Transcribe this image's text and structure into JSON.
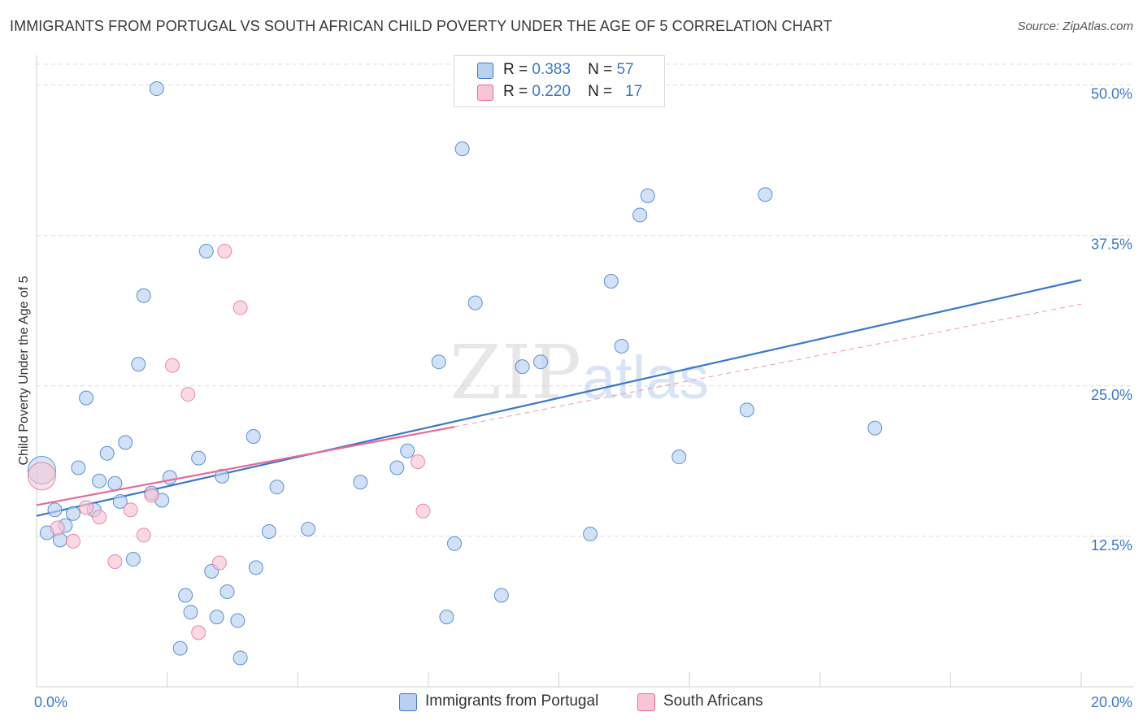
{
  "title": "IMMIGRANTS FROM PORTUGAL VS SOUTH AFRICAN CHILD POVERTY UNDER THE AGE OF 5 CORRELATION CHART",
  "source": "Source: ZipAtlas.com",
  "watermark": "ZIPatlas",
  "colors": {
    "blue": "#3b78c7",
    "blue_fill": "#b9d1f1",
    "pink": "#e76b97",
    "pink_fill": "#f8c5d5",
    "grid": "#dcdcdc"
  },
  "legend": {
    "rows": [
      {
        "r_label": "R =",
        "r_value": "0.383",
        "n_label": "N =",
        "n_value": "57",
        "series": "blue"
      },
      {
        "r_label": "R =",
        "r_value": "0.220",
        "n_label": "N =",
        "n_value": "17",
        "series": "pink"
      }
    ]
  },
  "bottom_legend": [
    {
      "label": "Immigrants from Portugal",
      "series": "blue"
    },
    {
      "label": "South Africans",
      "series": "pink"
    }
  ],
  "chart_data": {
    "type": "scatter",
    "title": "IMMIGRANTS FROM PORTUGAL VS SOUTH AFRICAN CHILD POVERTY UNDER THE AGE OF 5 CORRELATION CHART",
    "xlabel": "",
    "ylabel": "Child Poverty Under the Age of 5",
    "xlim": [
      0,
      20
    ],
    "ylim": [
      0,
      52
    ],
    "x_tick_labels": [
      "0.0%",
      "20.0%"
    ],
    "y_ticks": [
      12.5,
      25.0,
      37.5,
      50.0
    ],
    "y_tick_labels": [
      "12.5%",
      "25.0%",
      "37.5%",
      "50.0%"
    ],
    "grid": true,
    "legend_position": "top-center",
    "series": [
      {
        "name": "Immigrants from Portugal",
        "color": "#3b78c7",
        "r": 0.383,
        "n": 57,
        "trend": {
          "x": [
            0,
            20
          ],
          "y": [
            14.2,
            33.8
          ]
        },
        "points": [
          {
            "x": 0.1,
            "y": 18.0,
            "big": true
          },
          {
            "x": 0.2,
            "y": 12.8
          },
          {
            "x": 0.35,
            "y": 14.7
          },
          {
            "x": 0.45,
            "y": 12.2
          },
          {
            "x": 0.55,
            "y": 13.4
          },
          {
            "x": 0.7,
            "y": 14.4
          },
          {
            "x": 0.8,
            "y": 18.2
          },
          {
            "x": 0.95,
            "y": 24.0
          },
          {
            "x": 1.1,
            "y": 14.7
          },
          {
            "x": 1.2,
            "y": 17.1
          },
          {
            "x": 1.35,
            "y": 19.4
          },
          {
            "x": 1.5,
            "y": 16.9
          },
          {
            "x": 1.6,
            "y": 15.4
          },
          {
            "x": 1.7,
            "y": 20.3
          },
          {
            "x": 1.85,
            "y": 10.6
          },
          {
            "x": 1.95,
            "y": 26.8
          },
          {
            "x": 2.05,
            "y": 32.5
          },
          {
            "x": 2.2,
            "y": 16.1
          },
          {
            "x": 2.3,
            "y": 49.7
          },
          {
            "x": 2.4,
            "y": 15.5
          },
          {
            "x": 2.55,
            "y": 17.4
          },
          {
            "x": 2.75,
            "y": 3.2
          },
          {
            "x": 2.85,
            "y": 7.6
          },
          {
            "x": 2.95,
            "y": 6.2
          },
          {
            "x": 3.1,
            "y": 19.0
          },
          {
            "x": 3.25,
            "y": 36.2
          },
          {
            "x": 3.35,
            "y": 9.6
          },
          {
            "x": 3.45,
            "y": 5.8
          },
          {
            "x": 3.55,
            "y": 17.5
          },
          {
            "x": 3.65,
            "y": 7.9
          },
          {
            "x": 3.85,
            "y": 5.5
          },
          {
            "x": 3.9,
            "y": 2.4
          },
          {
            "x": 4.15,
            "y": 20.8
          },
          {
            "x": 4.2,
            "y": 9.9
          },
          {
            "x": 4.45,
            "y": 12.9
          },
          {
            "x": 4.6,
            "y": 16.6
          },
          {
            "x": 5.2,
            "y": 13.1
          },
          {
            "x": 6.2,
            "y": 17.0
          },
          {
            "x": 6.9,
            "y": 18.2
          },
          {
            "x": 7.1,
            "y": 19.6
          },
          {
            "x": 7.7,
            "y": 27.0
          },
          {
            "x": 7.85,
            "y": 5.8
          },
          {
            "x": 8.0,
            "y": 11.9
          },
          {
            "x": 8.15,
            "y": 44.7
          },
          {
            "x": 8.4,
            "y": 31.9
          },
          {
            "x": 8.9,
            "y": 7.6
          },
          {
            "x": 9.3,
            "y": 26.6
          },
          {
            "x": 9.65,
            "y": 27.0
          },
          {
            "x": 10.6,
            "y": 12.7
          },
          {
            "x": 11.0,
            "y": 33.7
          },
          {
            "x": 11.2,
            "y": 28.3
          },
          {
            "x": 11.55,
            "y": 39.2
          },
          {
            "x": 11.7,
            "y": 40.8
          },
          {
            "x": 12.3,
            "y": 19.1
          },
          {
            "x": 13.6,
            "y": 23.0
          },
          {
            "x": 13.95,
            "y": 40.9
          },
          {
            "x": 16.05,
            "y": 21.5
          }
        ]
      },
      {
        "name": "South Africans",
        "color": "#e76b97",
        "r": 0.22,
        "n": 17,
        "trend": {
          "x": [
            0,
            8.0
          ],
          "y": [
            15.1,
            21.6
          ]
        },
        "trend_extension": {
          "x": [
            8.0,
            20
          ],
          "y": [
            21.6,
            31.8
          ]
        },
        "points": [
          {
            "x": 0.1,
            "y": 17.5,
            "big": true
          },
          {
            "x": 0.4,
            "y": 13.2
          },
          {
            "x": 0.7,
            "y": 12.1
          },
          {
            "x": 0.95,
            "y": 14.9
          },
          {
            "x": 1.2,
            "y": 14.1
          },
          {
            "x": 1.5,
            "y": 10.4
          },
          {
            "x": 1.8,
            "y": 14.7
          },
          {
            "x": 2.05,
            "y": 12.6
          },
          {
            "x": 2.2,
            "y": 15.9
          },
          {
            "x": 2.6,
            "y": 26.7
          },
          {
            "x": 2.9,
            "y": 24.3
          },
          {
            "x": 3.1,
            "y": 4.5
          },
          {
            "x": 3.5,
            "y": 10.3
          },
          {
            "x": 3.6,
            "y": 36.2
          },
          {
            "x": 3.9,
            "y": 31.5
          },
          {
            "x": 7.3,
            "y": 18.7
          },
          {
            "x": 7.4,
            "y": 14.6
          }
        ]
      }
    ]
  }
}
